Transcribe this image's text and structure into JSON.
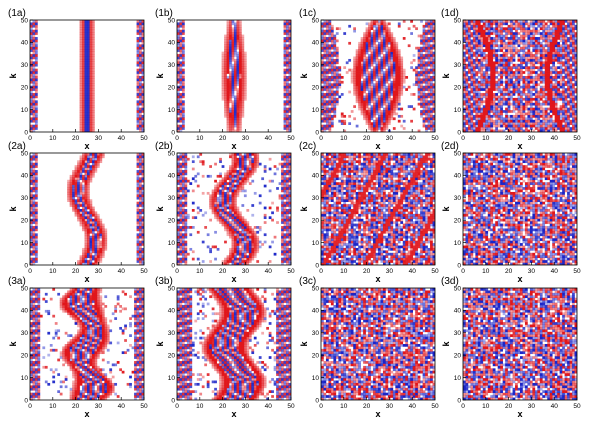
{
  "colors": {
    "positive": "#e0161b",
    "negative": "#1a24c8",
    "axis": "#000000"
  },
  "chart_data": {
    "type": "heatmap",
    "rows": 3,
    "cols": 4,
    "xlabel": "x",
    "ylabel": "k",
    "xlim": [
      0,
      50
    ],
    "ylim": [
      0,
      50
    ],
    "xticks": [
      0,
      10,
      20,
      30,
      40,
      50
    ],
    "yticks": [
      0,
      10,
      20,
      30,
      40,
      50
    ],
    "panels": [
      {
        "label": "(1a)",
        "pattern": "straight-core",
        "complexity": 0.05
      },
      {
        "label": "(1b)",
        "pattern": "lens-core",
        "complexity": 0.15
      },
      {
        "label": "(1c)",
        "pattern": "wide-lens",
        "complexity": 0.3
      },
      {
        "label": "(1d)",
        "pattern": "lattice",
        "complexity": 0.65
      },
      {
        "label": "(2a)",
        "pattern": "twisted-core",
        "complexity": 0.2
      },
      {
        "label": "(2b)",
        "pattern": "double-twist",
        "complexity": 0.35
      },
      {
        "label": "(2c)",
        "pattern": "diagonal-chaos",
        "complexity": 0.8
      },
      {
        "label": "(2d)",
        "pattern": "chaos",
        "complexity": 0.9
      },
      {
        "label": "(3a)",
        "pattern": "wavy-core",
        "complexity": 0.35
      },
      {
        "label": "(3b)",
        "pattern": "braided",
        "complexity": 0.6
      },
      {
        "label": "(3c)",
        "pattern": "chaos",
        "complexity": 0.95
      },
      {
        "label": "(3d)",
        "pattern": "chaos",
        "complexity": 1.0
      }
    ]
  }
}
